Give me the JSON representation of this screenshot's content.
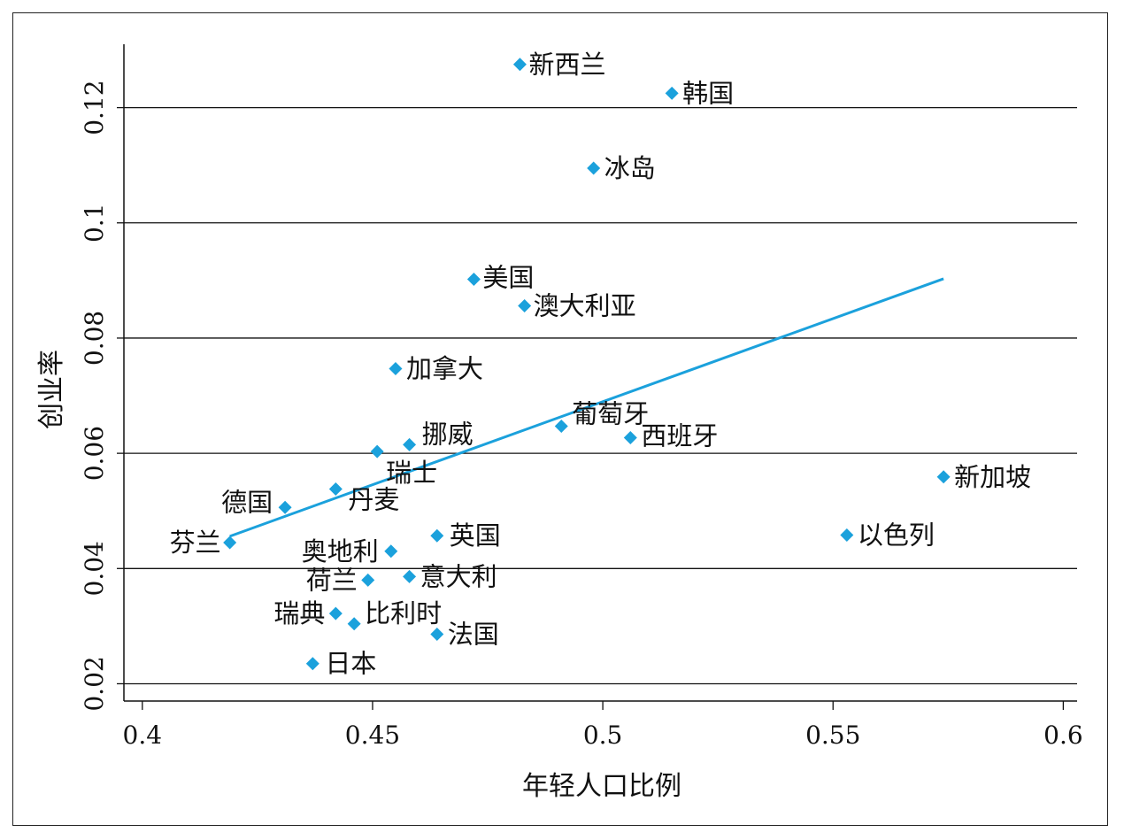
{
  "chart_data": {
    "type": "scatter",
    "title": "",
    "xlabel": "年轻人口比例",
    "ylabel": "创业率",
    "xlim": [
      0.396,
      0.603
    ],
    "ylim": [
      0.017,
      0.131
    ],
    "x_ticks": [
      {
        "value": 0.4,
        "label": "0.4"
      },
      {
        "value": 0.45,
        "label": "0.45"
      },
      {
        "value": 0.5,
        "label": "0.5"
      },
      {
        "value": 0.55,
        "label": "0.55"
      },
      {
        "value": 0.6,
        "label": "0.6"
      }
    ],
    "y_ticks": [
      {
        "value": 0.02,
        "label": "0.02"
      },
      {
        "value": 0.04,
        "label": "0.04"
      },
      {
        "value": 0.06,
        "label": "0.06"
      },
      {
        "value": 0.08,
        "label": "0.08"
      },
      {
        "value": 0.1,
        "label": "0.1"
      },
      {
        "value": 0.12,
        "label": "0.12"
      }
    ],
    "grid": "horizontal",
    "colors": {
      "marker": "#1ba1dc",
      "trend": "#1ba1dc",
      "grid": "#111111"
    },
    "points": [
      {
        "label": "新西兰",
        "x": 0.482,
        "y": 0.1275
      },
      {
        "label": "韩国",
        "x": 0.515,
        "y": 0.1225
      },
      {
        "label": "冰岛",
        "x": 0.498,
        "y": 0.1095
      },
      {
        "label": "美国",
        "x": 0.472,
        "y": 0.0902
      },
      {
        "label": "澳大利亚",
        "x": 0.483,
        "y": 0.0856
      },
      {
        "label": "加拿大",
        "x": 0.455,
        "y": 0.0747
      },
      {
        "label": "葡萄牙",
        "x": 0.491,
        "y": 0.0647
      },
      {
        "label": "西班牙",
        "x": 0.506,
        "y": 0.0627
      },
      {
        "label": "挪威",
        "x": 0.458,
        "y": 0.0615
      },
      {
        "label": "瑞士",
        "x": 0.451,
        "y": 0.0603
      },
      {
        "label": "新加坡",
        "x": 0.574,
        "y": 0.0559
      },
      {
        "label": "丹麦",
        "x": 0.442,
        "y": 0.0538
      },
      {
        "label": "德国",
        "x": 0.431,
        "y": 0.0506
      },
      {
        "label": "以色列",
        "x": 0.553,
        "y": 0.0458
      },
      {
        "label": "英国",
        "x": 0.464,
        "y": 0.0457
      },
      {
        "label": "芬兰",
        "x": 0.419,
        "y": 0.0445
      },
      {
        "label": "奥地利",
        "x": 0.454,
        "y": 0.043
      },
      {
        "label": "意大利",
        "x": 0.458,
        "y": 0.0386
      },
      {
        "label": "荷兰",
        "x": 0.449,
        "y": 0.038
      },
      {
        "label": "瑞典",
        "x": 0.442,
        "y": 0.0322
      },
      {
        "label": "比利时",
        "x": 0.446,
        "y": 0.0304
      },
      {
        "label": "法国",
        "x": 0.464,
        "y": 0.0286
      },
      {
        "label": "日本",
        "x": 0.437,
        "y": 0.0235
      }
    ],
    "trendline": {
      "x": [
        0.419,
        0.574
      ],
      "y": [
        0.0456,
        0.0903
      ]
    }
  }
}
